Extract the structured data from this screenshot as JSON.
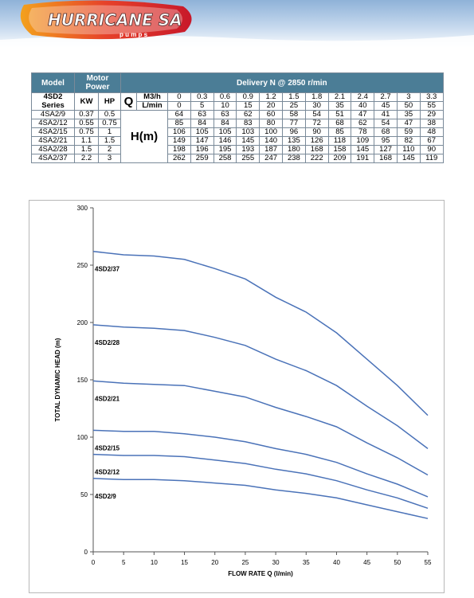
{
  "header": {
    "brand": "HURRICANE SA",
    "tagline": "p u m p s"
  },
  "table": {
    "head": {
      "model": "Model",
      "motor_power": "Motor Power",
      "delivery": "Delivery N @ 2850 r/min"
    },
    "series_label_1": "4SD2",
    "series_label_2": "Series",
    "kw": "KW",
    "hp": "HP",
    "q": "Q",
    "m3h_label": "M3/h",
    "lmin_label": "L/min",
    "h_label": "H(m)",
    "m3h": [
      "0",
      "0.3",
      "0.6",
      "0.9",
      "1.2",
      "1.5",
      "1.8",
      "2.1",
      "2.4",
      "2.7",
      "3",
      "3.3"
    ],
    "lmin": [
      "0",
      "5",
      "10",
      "15",
      "20",
      "25",
      "30",
      "35",
      "40",
      "45",
      "50",
      "55"
    ],
    "rows": [
      {
        "model": "4SA2/9",
        "kw": "0.37",
        "hp": "0.5",
        "h": [
          "64",
          "63",
          "63",
          "62",
          "60",
          "58",
          "54",
          "51",
          "47",
          "41",
          "35",
          "29"
        ]
      },
      {
        "model": "4SA2/12",
        "kw": "0.55",
        "hp": "0.75",
        "h": [
          "85",
          "84",
          "84",
          "83",
          "80",
          "77",
          "72",
          "68",
          "62",
          "54",
          "47",
          "38"
        ]
      },
      {
        "model": "4SA2/15",
        "kw": "0.75",
        "hp": "1",
        "h": [
          "106",
          "105",
          "105",
          "103",
          "100",
          "96",
          "90",
          "85",
          "78",
          "68",
          "59",
          "48"
        ]
      },
      {
        "model": "4SA2/21",
        "kw": "1.1",
        "hp": "1.5",
        "h": [
          "149",
          "147",
          "146",
          "145",
          "140",
          "135",
          "126",
          "118",
          "109",
          "95",
          "82",
          "67"
        ]
      },
      {
        "model": "4SA2/28",
        "kw": "1.5",
        "hp": "2",
        "h": [
          "198",
          "196",
          "195",
          "193",
          "187",
          "180",
          "168",
          "158",
          "145",
          "127",
          "110",
          "90"
        ]
      },
      {
        "model": "4SA2/37",
        "kw": "2.2",
        "hp": "3",
        "h": [
          "262",
          "259",
          "258",
          "255",
          "247",
          "238",
          "222",
          "209",
          "191",
          "168",
          "145",
          "119"
        ]
      }
    ]
  },
  "chart_data": {
    "type": "line",
    "xlabel": "FLOW RATE Q (l/min)",
    "ylabel": "TOTAL DYNAMIC HEAD (m)",
    "xlim": [
      0,
      55
    ],
    "ylim": [
      0,
      300
    ],
    "x": [
      0,
      5,
      10,
      15,
      20,
      25,
      30,
      35,
      40,
      45,
      50,
      55
    ],
    "x_ticks": [
      "0",
      "5",
      "10",
      "15",
      "20",
      "25",
      "30",
      "35",
      "40",
      "45",
      "50",
      "55"
    ],
    "y_ticks": [
      "0",
      "50",
      "100",
      "150",
      "200",
      "250",
      "300"
    ],
    "grid": false,
    "series": [
      {
        "name": "4SD2/37",
        "values": [
          262,
          259,
          258,
          255,
          247,
          238,
          222,
          209,
          191,
          168,
          145,
          119
        ]
      },
      {
        "name": "4SD2/28",
        "values": [
          198,
          196,
          195,
          193,
          187,
          180,
          168,
          158,
          145,
          127,
          110,
          90
        ]
      },
      {
        "name": "4SD2/21",
        "values": [
          149,
          147,
          146,
          145,
          140,
          135,
          126,
          118,
          109,
          95,
          82,
          67
        ]
      },
      {
        "name": "4SD2/15",
        "values": [
          106,
          105,
          105,
          103,
          100,
          96,
          90,
          85,
          78,
          68,
          59,
          48
        ]
      },
      {
        "name": "4SD2/12",
        "values": [
          85,
          84,
          84,
          83,
          80,
          77,
          72,
          68,
          62,
          54,
          47,
          38
        ]
      },
      {
        "name": "4SD2/9",
        "values": [
          64,
          63,
          63,
          62,
          60,
          58,
          54,
          51,
          47,
          41,
          35,
          29
        ]
      }
    ],
    "line_color": "#4a72b8"
  }
}
